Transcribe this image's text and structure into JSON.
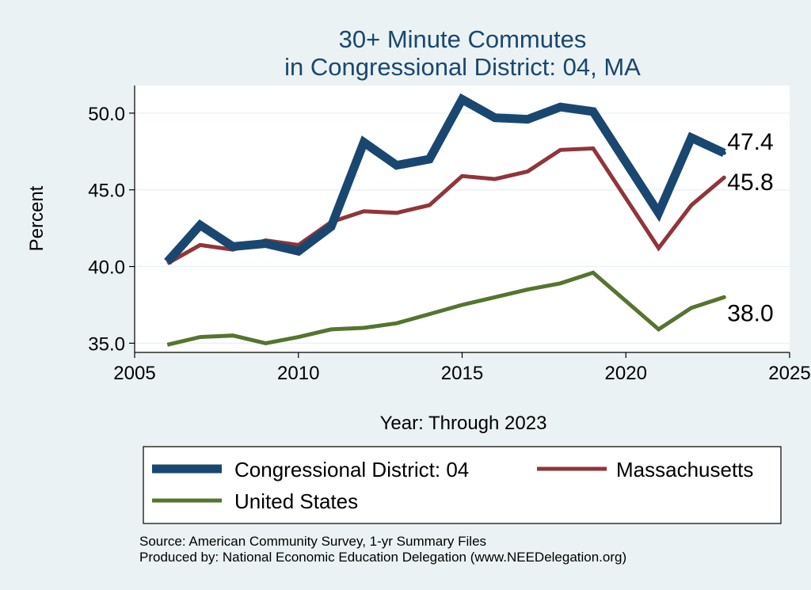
{
  "chart_data": {
    "type": "line",
    "title": [
      "30+ Minute Commutes",
      "in Congressional District:  04, MA"
    ],
    "xlabel": "Year: Through 2023",
    "ylabel": "Percent",
    "xlim": [
      2005,
      2025
    ],
    "ylim": [
      34.4,
      51.8
    ],
    "xticks": [
      2005,
      2010,
      2015,
      2020,
      2025
    ],
    "yticks": [
      35.0,
      40.0,
      45.0,
      50.0
    ],
    "grid": true,
    "legend_position": "bottom",
    "series": [
      {
        "name": "Congressional District:  04",
        "color": "#1a476f",
        "x": [
          2006,
          2007,
          2008,
          2009,
          2010,
          2011,
          2012,
          2013,
          2014,
          2015,
          2016,
          2017,
          2018,
          2019,
          2021,
          2022,
          2023
        ],
        "values": [
          40.3,
          42.7,
          41.3,
          41.5,
          41.0,
          42.6,
          48.1,
          46.6,
          47.0,
          50.9,
          49.7,
          49.6,
          50.4,
          50.1,
          43.5,
          48.4,
          47.4
        ],
        "end_label": "47.4"
      },
      {
        "name": "Massachusetts",
        "color": "#90353b",
        "x": [
          2006,
          2007,
          2008,
          2009,
          2010,
          2011,
          2012,
          2013,
          2014,
          2015,
          2016,
          2017,
          2018,
          2019,
          2021,
          2022,
          2023
        ],
        "values": [
          40.2,
          41.4,
          41.1,
          41.7,
          41.4,
          42.9,
          43.6,
          43.5,
          44.0,
          45.9,
          45.7,
          46.2,
          47.6,
          47.7,
          41.2,
          44.0,
          45.8
        ],
        "end_label": "45.8"
      },
      {
        "name": "United States",
        "color": "#55752f",
        "x": [
          2006,
          2007,
          2008,
          2009,
          2010,
          2011,
          2012,
          2013,
          2014,
          2015,
          2016,
          2017,
          2018,
          2019,
          2021,
          2022,
          2023
        ],
        "values": [
          34.9,
          35.4,
          35.5,
          35.0,
          35.4,
          35.9,
          36.0,
          36.3,
          36.9,
          37.5,
          38.0,
          38.5,
          38.9,
          39.6,
          35.9,
          37.3,
          38.0
        ],
        "end_label": "38.0"
      }
    ],
    "source_lines": [
      "Source: American Community Survey, 1-yr Summary Files",
      "Produced by: National Economic Education Delegation (www.NEEDelegation.org)"
    ]
  }
}
